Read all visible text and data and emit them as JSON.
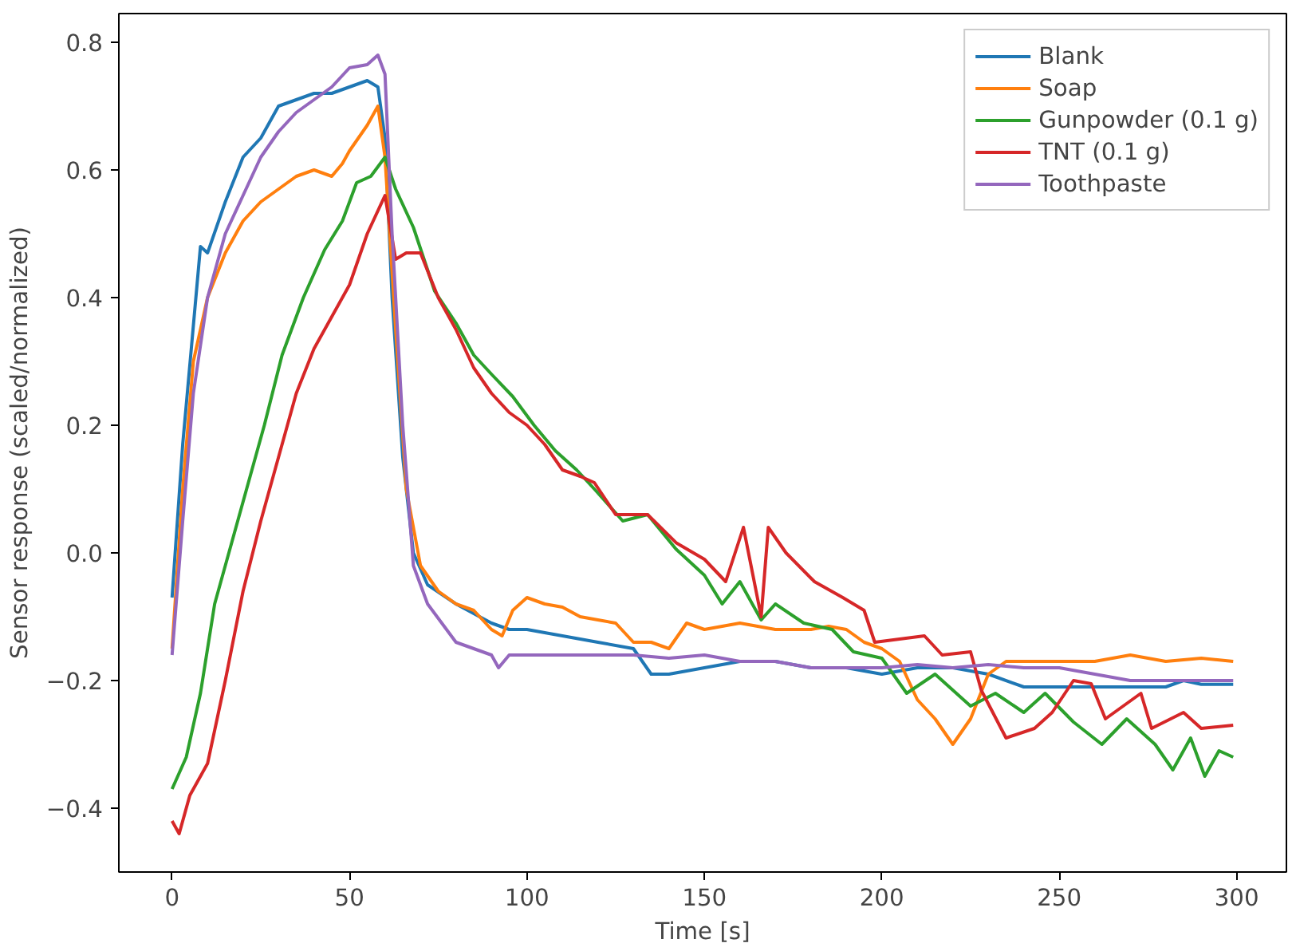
{
  "chart_data": {
    "type": "line",
    "xlabel": "Time [s]",
    "ylabel": "Sensor response (scaled/normalized)",
    "xlim": [
      -15,
      314
    ],
    "ylim": [
      -0.5,
      0.845
    ],
    "xticks": [
      0,
      50,
      100,
      150,
      200,
      250,
      300
    ],
    "yticks": [
      {
        "value": -0.4,
        "label": "−0.4"
      },
      {
        "value": -0.2,
        "label": "−0.2"
      },
      {
        "value": 0,
        "label": "0.0"
      },
      {
        "value": 0.2,
        "label": "0.2"
      },
      {
        "value": 0.4,
        "label": "0.4"
      },
      {
        "value": 0.6,
        "label": "0.6"
      },
      {
        "value": 0.8,
        "label": "0.8"
      }
    ],
    "grid": false,
    "legend": "top right",
    "series": [
      {
        "name": "Blank",
        "color": "#1f77b4",
        "x": [
          0,
          3,
          8,
          10,
          15,
          20,
          25,
          30,
          35,
          40,
          45,
          50,
          55,
          58,
          60,
          62,
          65,
          68,
          72,
          80,
          90,
          95,
          100,
          110,
          120,
          130,
          135,
          140,
          150,
          160,
          170,
          180,
          190,
          200,
          210,
          220,
          230,
          240,
          250,
          260,
          270,
          280,
          285,
          290,
          299
        ],
        "values": [
          -0.07,
          0.17,
          0.48,
          0.47,
          0.55,
          0.62,
          0.65,
          0.7,
          0.71,
          0.72,
          0.72,
          0.73,
          0.74,
          0.73,
          0.65,
          0.4,
          0.15,
          0.0,
          -0.05,
          -0.08,
          -0.11,
          -0.12,
          -0.12,
          -0.13,
          -0.14,
          -0.15,
          -0.19,
          -0.19,
          -0.18,
          -0.17,
          -0.17,
          -0.18,
          -0.18,
          -0.19,
          -0.18,
          -0.18,
          -0.19,
          -0.21,
          -0.21,
          -0.21,
          -0.21,
          -0.21,
          -0.2,
          -0.206,
          -0.206
        ]
      },
      {
        "name": "Soap",
        "color": "#ff7f0e",
        "x": [
          0,
          3,
          6,
          10,
          15,
          20,
          25,
          30,
          35,
          40,
          45,
          48,
          50,
          55,
          58,
          60,
          63,
          66,
          70,
          75,
          80,
          85,
          90,
          93,
          96,
          100,
          105,
          110,
          115,
          120,
          125,
          130,
          135,
          140,
          145,
          150,
          155,
          160,
          165,
          170,
          180,
          185,
          190,
          195,
          200,
          205,
          210,
          215,
          220,
          225,
          230,
          235,
          240,
          260,
          270,
          280,
          290,
          299
        ],
        "values": [
          -0.15,
          0.1,
          0.3,
          0.4,
          0.47,
          0.52,
          0.55,
          0.57,
          0.59,
          0.6,
          0.59,
          0.61,
          0.63,
          0.67,
          0.7,
          0.62,
          0.35,
          0.1,
          -0.02,
          -0.06,
          -0.08,
          -0.09,
          -0.12,
          -0.13,
          -0.09,
          -0.07,
          -0.08,
          -0.085,
          -0.1,
          -0.105,
          -0.11,
          -0.14,
          -0.14,
          -0.15,
          -0.11,
          -0.12,
          -0.115,
          -0.11,
          -0.115,
          -0.12,
          -0.12,
          -0.115,
          -0.12,
          -0.14,
          -0.15,
          -0.17,
          -0.23,
          -0.26,
          -0.3,
          -0.26,
          -0.19,
          -0.17,
          -0.17,
          -0.17,
          -0.16,
          -0.17,
          -0.165,
          -0.17
        ]
      },
      {
        "name": "Gunpowder (0.1 g)",
        "color": "#2ca02c",
        "x": [
          0,
          4,
          8,
          12,
          16,
          21,
          26,
          31,
          37,
          43,
          48,
          52,
          56,
          60,
          63,
          68,
          74,
          80,
          85,
          90,
          96,
          102,
          108,
          114,
          119,
          127,
          134,
          142,
          150,
          155,
          160,
          166,
          170,
          178,
          186,
          192,
          200,
          207,
          215,
          225,
          232,
          240,
          246,
          254,
          262,
          269,
          277,
          282,
          287,
          291,
          295,
          299
        ],
        "values": [
          -0.37,
          -0.32,
          -0.22,
          -0.08,
          0.0,
          0.1,
          0.2,
          0.31,
          0.4,
          0.475,
          0.52,
          0.58,
          0.59,
          0.62,
          0.57,
          0.51,
          0.41,
          0.36,
          0.31,
          0.28,
          0.245,
          0.2,
          0.16,
          0.13,
          0.1,
          0.05,
          0.06,
          0.006,
          -0.035,
          -0.08,
          -0.045,
          -0.105,
          -0.08,
          -0.11,
          -0.12,
          -0.155,
          -0.165,
          -0.22,
          -0.19,
          -0.24,
          -0.22,
          -0.25,
          -0.22,
          -0.265,
          -0.3,
          -0.26,
          -0.3,
          -0.34,
          -0.29,
          -0.35,
          -0.31,
          -0.32
        ]
      },
      {
        "name": "TNT (0.1 g)",
        "color": "#d62728",
        "x": [
          0,
          2,
          5,
          10,
          15,
          20,
          25,
          30,
          35,
          40,
          45,
          50,
          55,
          60,
          63,
          66,
          70,
          75,
          80,
          85,
          90,
          95,
          100,
          105,
          110,
          115,
          119,
          125,
          134,
          142,
          150,
          156,
          161,
          166,
          168,
          173,
          181,
          189,
          195,
          198,
          212,
          217,
          225,
          228,
          235,
          243,
          248,
          254,
          259,
          263,
          273,
          276,
          285,
          290,
          299
        ],
        "values": [
          -0.42,
          -0.44,
          -0.38,
          -0.33,
          -0.2,
          -0.06,
          0.05,
          0.15,
          0.25,
          0.32,
          0.37,
          0.42,
          0.5,
          0.56,
          0.46,
          0.47,
          0.47,
          0.4,
          0.35,
          0.29,
          0.25,
          0.22,
          0.2,
          0.17,
          0.13,
          0.12,
          0.11,
          0.06,
          0.06,
          0.016,
          -0.01,
          -0.045,
          0.04,
          -0.1,
          0.04,
          0.0,
          -0.045,
          -0.07,
          -0.09,
          -0.14,
          -0.13,
          -0.16,
          -0.155,
          -0.215,
          -0.29,
          -0.275,
          -0.25,
          -0.2,
          -0.205,
          -0.26,
          -0.22,
          -0.275,
          -0.25,
          -0.275,
          -0.27
        ]
      },
      {
        "name": "Toothpaste",
        "color": "#9467bd",
        "x": [
          0,
          3,
          6,
          10,
          15,
          20,
          25,
          30,
          35,
          40,
          45,
          50,
          55,
          58,
          60,
          62,
          65,
          68,
          72,
          76,
          80,
          85,
          90,
          92,
          95,
          100,
          110,
          120,
          130,
          140,
          150,
          160,
          170,
          180,
          190,
          200,
          210,
          220,
          230,
          240,
          250,
          260,
          270,
          280,
          290,
          299
        ],
        "values": [
          -0.16,
          0.05,
          0.25,
          0.4,
          0.5,
          0.56,
          0.62,
          0.66,
          0.69,
          0.71,
          0.73,
          0.76,
          0.765,
          0.78,
          0.75,
          0.5,
          0.2,
          -0.02,
          -0.08,
          -0.11,
          -0.14,
          -0.15,
          -0.16,
          -0.18,
          -0.16,
          -0.16,
          -0.16,
          -0.16,
          -0.16,
          -0.165,
          -0.16,
          -0.17,
          -0.17,
          -0.18,
          -0.18,
          -0.18,
          -0.175,
          -0.18,
          -0.175,
          -0.18,
          -0.18,
          -0.19,
          -0.2,
          -0.2,
          -0.2,
          -0.2
        ]
      }
    ]
  }
}
